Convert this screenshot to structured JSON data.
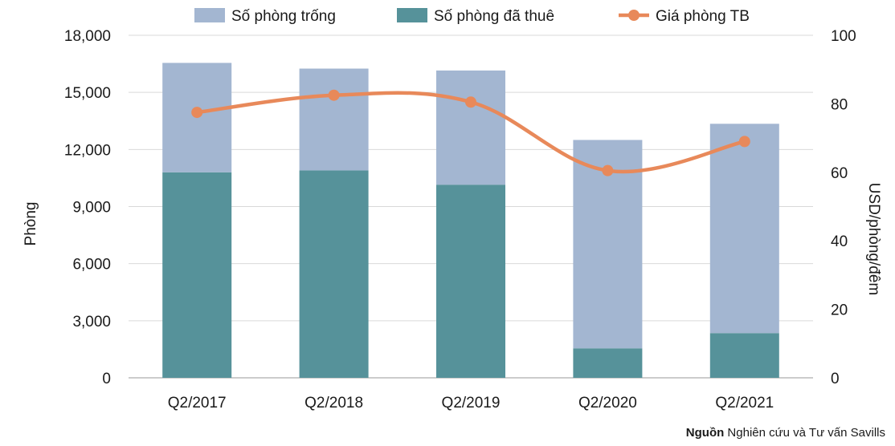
{
  "chart_data": {
    "type": "bar",
    "stacked": true,
    "categories": [
      "Q2/2017",
      "Q2/2018",
      "Q2/2019",
      "Q2/2020",
      "Q2/2021"
    ],
    "series": [
      {
        "name": "Số phòng đã thuê",
        "axis": "left",
        "type": "bar",
        "color": "#56929a",
        "values": [
          10800,
          10900,
          10150,
          1550,
          2350
        ]
      },
      {
        "name": "Số phòng trống",
        "axis": "left",
        "type": "bar",
        "color": "#a3b6d1",
        "values": [
          5750,
          5350,
          6000,
          10950,
          11000
        ]
      },
      {
        "name": "Giá phòng TB",
        "axis": "right",
        "type": "line",
        "color": "#e8895a",
        "values": [
          77.5,
          82.5,
          80.5,
          60.5,
          69
        ]
      }
    ],
    "legend_order": [
      "Số phòng trống",
      "Số phòng đã thuê",
      "Giá phòng TB"
    ],
    "legend_position": "top",
    "ylabel": "Phòng",
    "ylim": [
      0,
      18000
    ],
    "yticks": [
      0,
      3000,
      6000,
      9000,
      12000,
      15000,
      18000
    ],
    "ytick_labels": [
      "0",
      "3,000",
      "6,000",
      "9,000",
      "12,000",
      "15,000",
      "18,000"
    ],
    "y2label": "USD/phòng/đêm",
    "y2lim": [
      0,
      100
    ],
    "y2ticks": [
      0,
      20,
      40,
      60,
      80,
      100
    ],
    "y2tick_labels": [
      "0",
      "20",
      "40",
      "60",
      "80",
      "100"
    ],
    "grid": true
  },
  "source": {
    "label": "Nguồn",
    "text": " Nghiên cứu và Tư vấn Savills"
  }
}
